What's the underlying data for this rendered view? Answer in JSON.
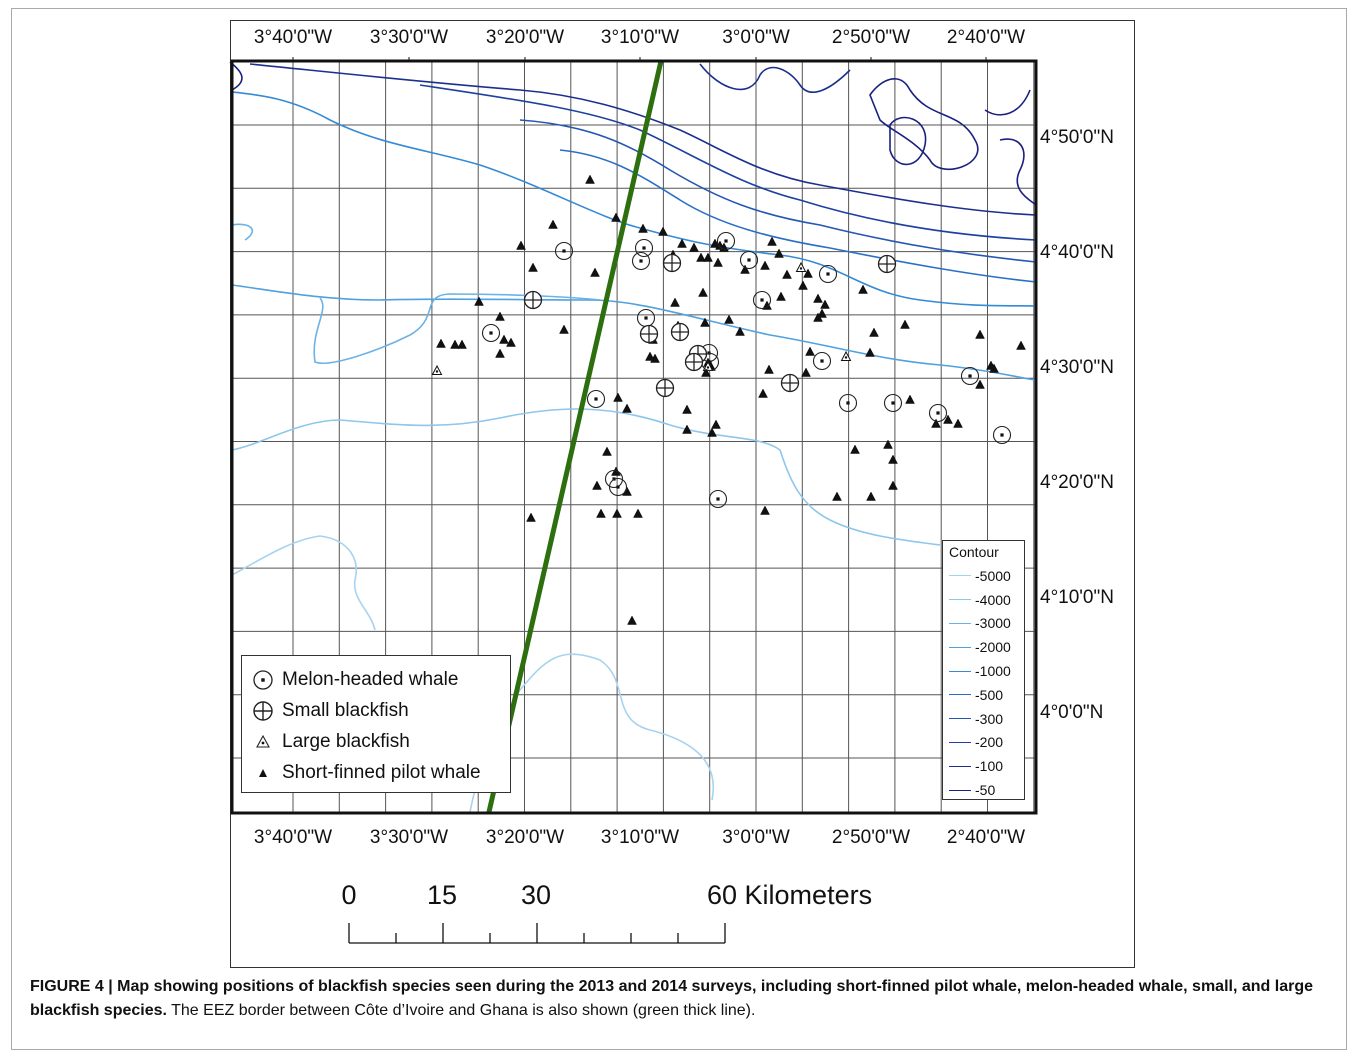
{
  "map": {
    "top_ticks": [
      "3°40'0\"W",
      "3°30'0\"W",
      "3°20'0\"W",
      "3°10'0\"W",
      "3°0'0\"W",
      "2°50'0\"W",
      "2°40'0\"W"
    ],
    "bottom_ticks": [
      "3°40'0\"W",
      "3°30'0\"W",
      "3°20'0\"W",
      "3°10'0\"W",
      "3°0'0\"W",
      "2°50'0\"W",
      "2°40'0\"W"
    ],
    "right_ticks": [
      "4°50'0\"N",
      "4°40'0\"N",
      "4°30'0\"N",
      "4°20'0\"N",
      "4°10'0\"N",
      "4°0'0\"N"
    ],
    "eez_border_color": "#2d6e0f"
  },
  "legend": {
    "items": [
      {
        "label": "Melon-headed whale",
        "symbol": "circle-dot-icon"
      },
      {
        "label": "Small blackfish",
        "symbol": "circle-cross-icon"
      },
      {
        "label": "Large blackfish",
        "symbol": "triangle-dot-icon"
      },
      {
        "label": "Short-finned pilot whale",
        "symbol": "filled-triangle-icon"
      }
    ]
  },
  "contour_legend": {
    "title": "Contour",
    "items": [
      {
        "label": "-5000",
        "color": "#a7d3ef"
      },
      {
        "label": "-4000",
        "color": "#8ec6ec"
      },
      {
        "label": "-3000",
        "color": "#6bb3e6"
      },
      {
        "label": "-2000",
        "color": "#4fa1df"
      },
      {
        "label": "-1000",
        "color": "#348ad6"
      },
      {
        "label": "-500",
        "color": "#2a6fc6"
      },
      {
        "label": "-300",
        "color": "#2456b3"
      },
      {
        "label": "-200",
        "color": "#1e41a0"
      },
      {
        "label": "-100",
        "color": "#1b2f8e"
      },
      {
        "label": "-50",
        "color": "#1a2080"
      }
    ]
  },
  "scalebar": {
    "labels": [
      "0",
      "15",
      "30",
      "60 Kilometers"
    ]
  },
  "caption": {
    "bold": "FIGURE 4 | Map showing positions of blackfish species seen during the 2013 and 2014 surveys, including short-finned pilot whale, melon-headed whale, small, and large blackfish species.",
    "normal": " The EEZ border between Côte d’Ivoire and Ghana is also shown (green thick line)."
  }
}
